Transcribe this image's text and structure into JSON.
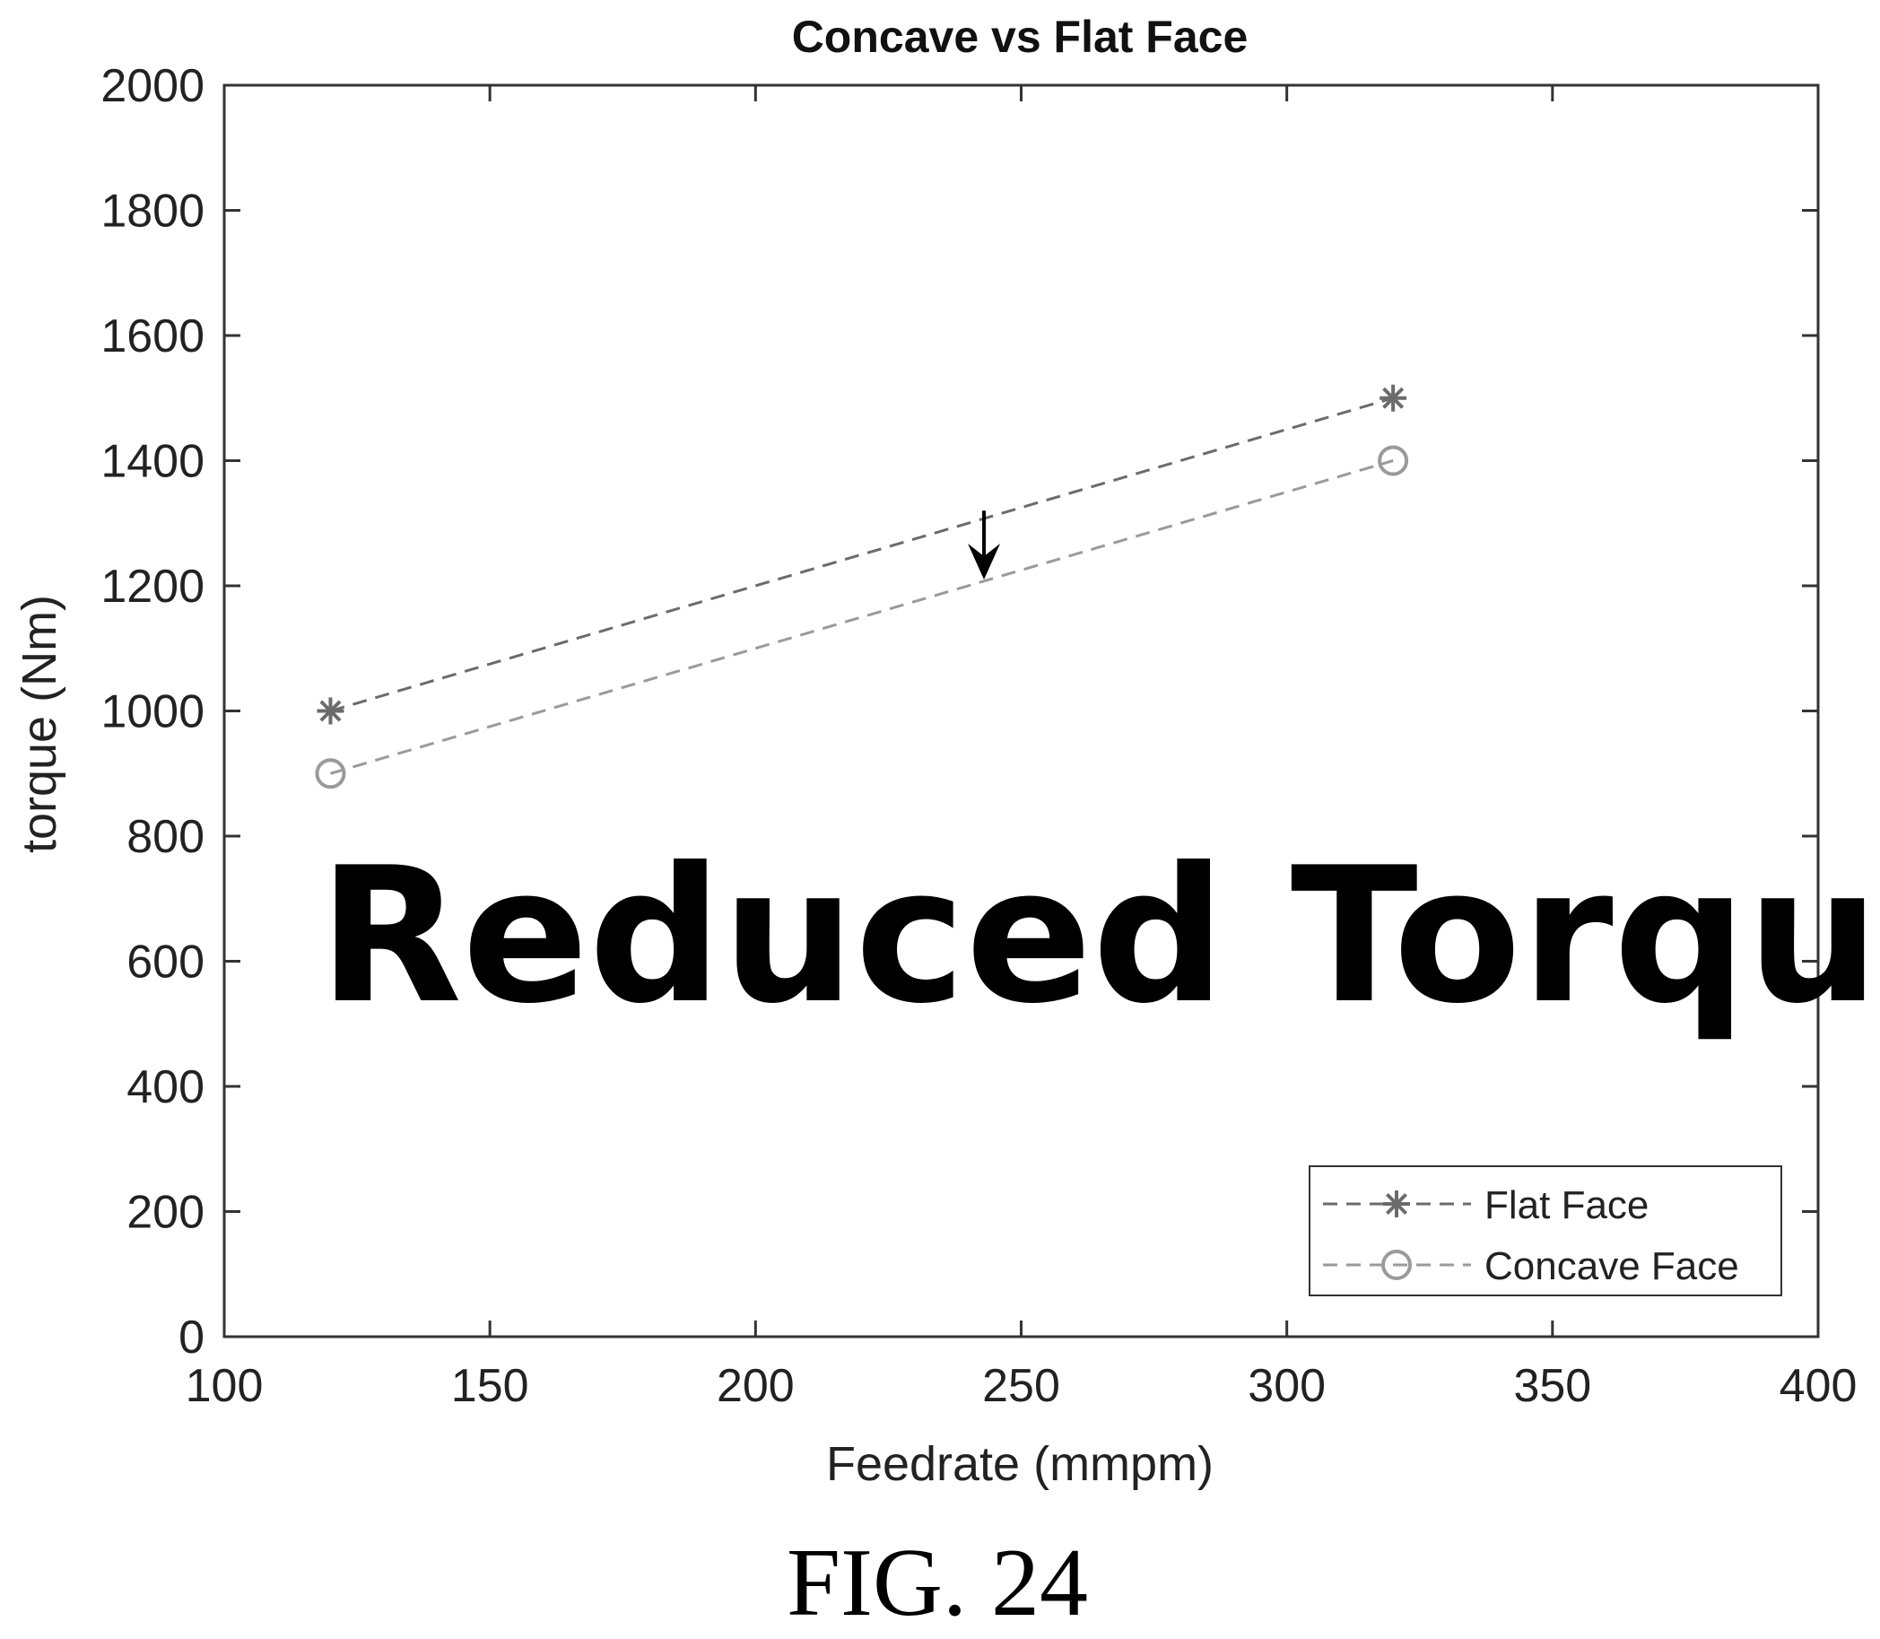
{
  "chart_data": {
    "type": "line",
    "title": "Concave vs Flat Face",
    "xlabel": "Feedrate (mmpm)",
    "ylabel": "torque (Nm)",
    "xlim": [
      100,
      400
    ],
    "ylim": [
      0,
      2000
    ],
    "xticks": [
      100,
      150,
      200,
      250,
      300,
      350,
      400
    ],
    "yticks": [
      0,
      200,
      400,
      600,
      800,
      1000,
      1200,
      1400,
      1600,
      1800,
      2000
    ],
    "grid": false,
    "legend_position": "bottom-right",
    "series": [
      {
        "name": "Flat Face",
        "marker": "asterisk",
        "line_style": "dashed",
        "color": "#6b6b6b",
        "x": [
          120,
          320
        ],
        "y": [
          1000,
          1500
        ]
      },
      {
        "name": "Concave Face",
        "marker": "circle",
        "line_style": "dashed",
        "color": "#9a9a9a",
        "x": [
          120,
          320
        ],
        "y": [
          900,
          1400
        ]
      }
    ],
    "annotations": [
      {
        "text": "Reduced Torque"
      },
      {
        "type": "arrow",
        "direction": "down",
        "x": 243,
        "from_y": 1320,
        "to_y": 1210
      }
    ]
  },
  "figure": {
    "caption": "FIG. 24"
  }
}
